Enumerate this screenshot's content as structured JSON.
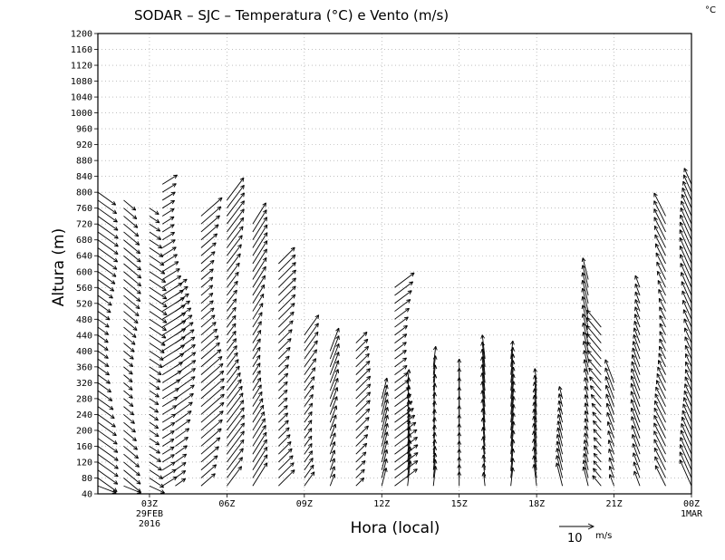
{
  "chart_data": {
    "type": "wind-barb-profile",
    "title": "SODAR – SJC – Temperatura (°C) e Vento (m/s)",
    "corner_unit": "°C",
    "xlabel": "Hora (local)",
    "ylabel": "Altura (m)",
    "ylim": [
      40,
      1200
    ],
    "y_ticks": [
      40,
      80,
      120,
      160,
      200,
      240,
      280,
      320,
      360,
      400,
      440,
      480,
      520,
      560,
      600,
      640,
      680,
      720,
      760,
      800,
      840,
      880,
      920,
      960,
      1000,
      1040,
      1080,
      1120,
      1160,
      1200
    ],
    "xlim_hours": [
      0,
      23
    ],
    "x_ticks": [
      {
        "hour": 2,
        "label": "03Z",
        "sub1": "29FEB",
        "sub2": "2016"
      },
      {
        "hour": 5,
        "label": "06Z",
        "sub1": "",
        "sub2": ""
      },
      {
        "hour": 8,
        "label": "09Z",
        "sub1": "",
        "sub2": ""
      },
      {
        "hour": 11,
        "label": "12Z",
        "sub1": "",
        "sub2": ""
      },
      {
        "hour": 14,
        "label": "15Z",
        "sub1": "",
        "sub2": ""
      },
      {
        "hour": 17,
        "label": "18Z",
        "sub1": "",
        "sub2": ""
      },
      {
        "hour": 20,
        "label": "21Z",
        "sub1": "",
        "sub2": ""
      },
      {
        "hour": 23,
        "label": "00Z",
        "sub1": "1MAR",
        "sub2": ""
      }
    ],
    "grid": true,
    "reference_vector": {
      "value": 10,
      "unit": "m/s"
    },
    "profiles": [
      {
        "hour": 0.0,
        "top": 800,
        "u": 7,
        "v": -5
      },
      {
        "hour": 1.0,
        "top": 780,
        "u": 6,
        "v": -5
      },
      {
        "hour": 2.0,
        "top": 760,
        "u": 6,
        "v": -4
      },
      {
        "hour": 2.5,
        "top": 820,
        "u": 8,
        "v": 5
      },
      {
        "hour": 3.0,
        "top": 560,
        "u": 7,
        "v": 5
      },
      {
        "hour": 4.0,
        "top": 740,
        "u": 8,
        "v": 7
      },
      {
        "hour": 5.0,
        "top": 780,
        "u": 6,
        "v": 8
      },
      {
        "hour": 6.0,
        "top": 720,
        "u": 5,
        "v": 8
      },
      {
        "hour": 7.0,
        "top": 630,
        "u": 6,
        "v": 6
      },
      {
        "hour": 8.0,
        "top": 440,
        "u": 5,
        "v": 7
      },
      {
        "hour": 9.0,
        "top": 400,
        "u": 3,
        "v": 8
      },
      {
        "hour": 10.0,
        "top": 420,
        "u": 5,
        "v": 5
      },
      {
        "hour": 11.0,
        "top": 280,
        "u": 2,
        "v": 8
      },
      {
        "hour": 11.5,
        "top": 560,
        "u": 8,
        "v": 6
      },
      {
        "hour": 12.0,
        "top": 320,
        "u": 1,
        "v": 9
      },
      {
        "hour": 13.0,
        "top": 370,
        "u": 1,
        "v": 9
      },
      {
        "hour": 14.0,
        "top": 330,
        "u": 0,
        "v": 9
      },
      {
        "hour": 15.0,
        "top": 380,
        "u": -1,
        "v": 9
      },
      {
        "hour": 16.0,
        "top": 390,
        "u": 1,
        "v": 9
      },
      {
        "hour": 17.0,
        "top": 320,
        "u": -1,
        "v": 8
      },
      {
        "hour": 18.0,
        "top": 290,
        "u": -2,
        "v": 8
      },
      {
        "hour": 19.0,
        "top": 580,
        "u": -2,
        "v": 8
      },
      {
        "hour": 19.5,
        "top": 460,
        "u": -5,
        "v": 6
      },
      {
        "hour": 20.0,
        "top": 330,
        "u": -3,
        "v": 8
      },
      {
        "hour": 21.0,
        "top": 560,
        "u": -3,
        "v": 8
      },
      {
        "hour": 22.0,
        "top": 740,
        "u": -4,
        "v": 8
      },
      {
        "hour": 23.0,
        "top": 830,
        "u": -4,
        "v": 9
      }
    ]
  }
}
